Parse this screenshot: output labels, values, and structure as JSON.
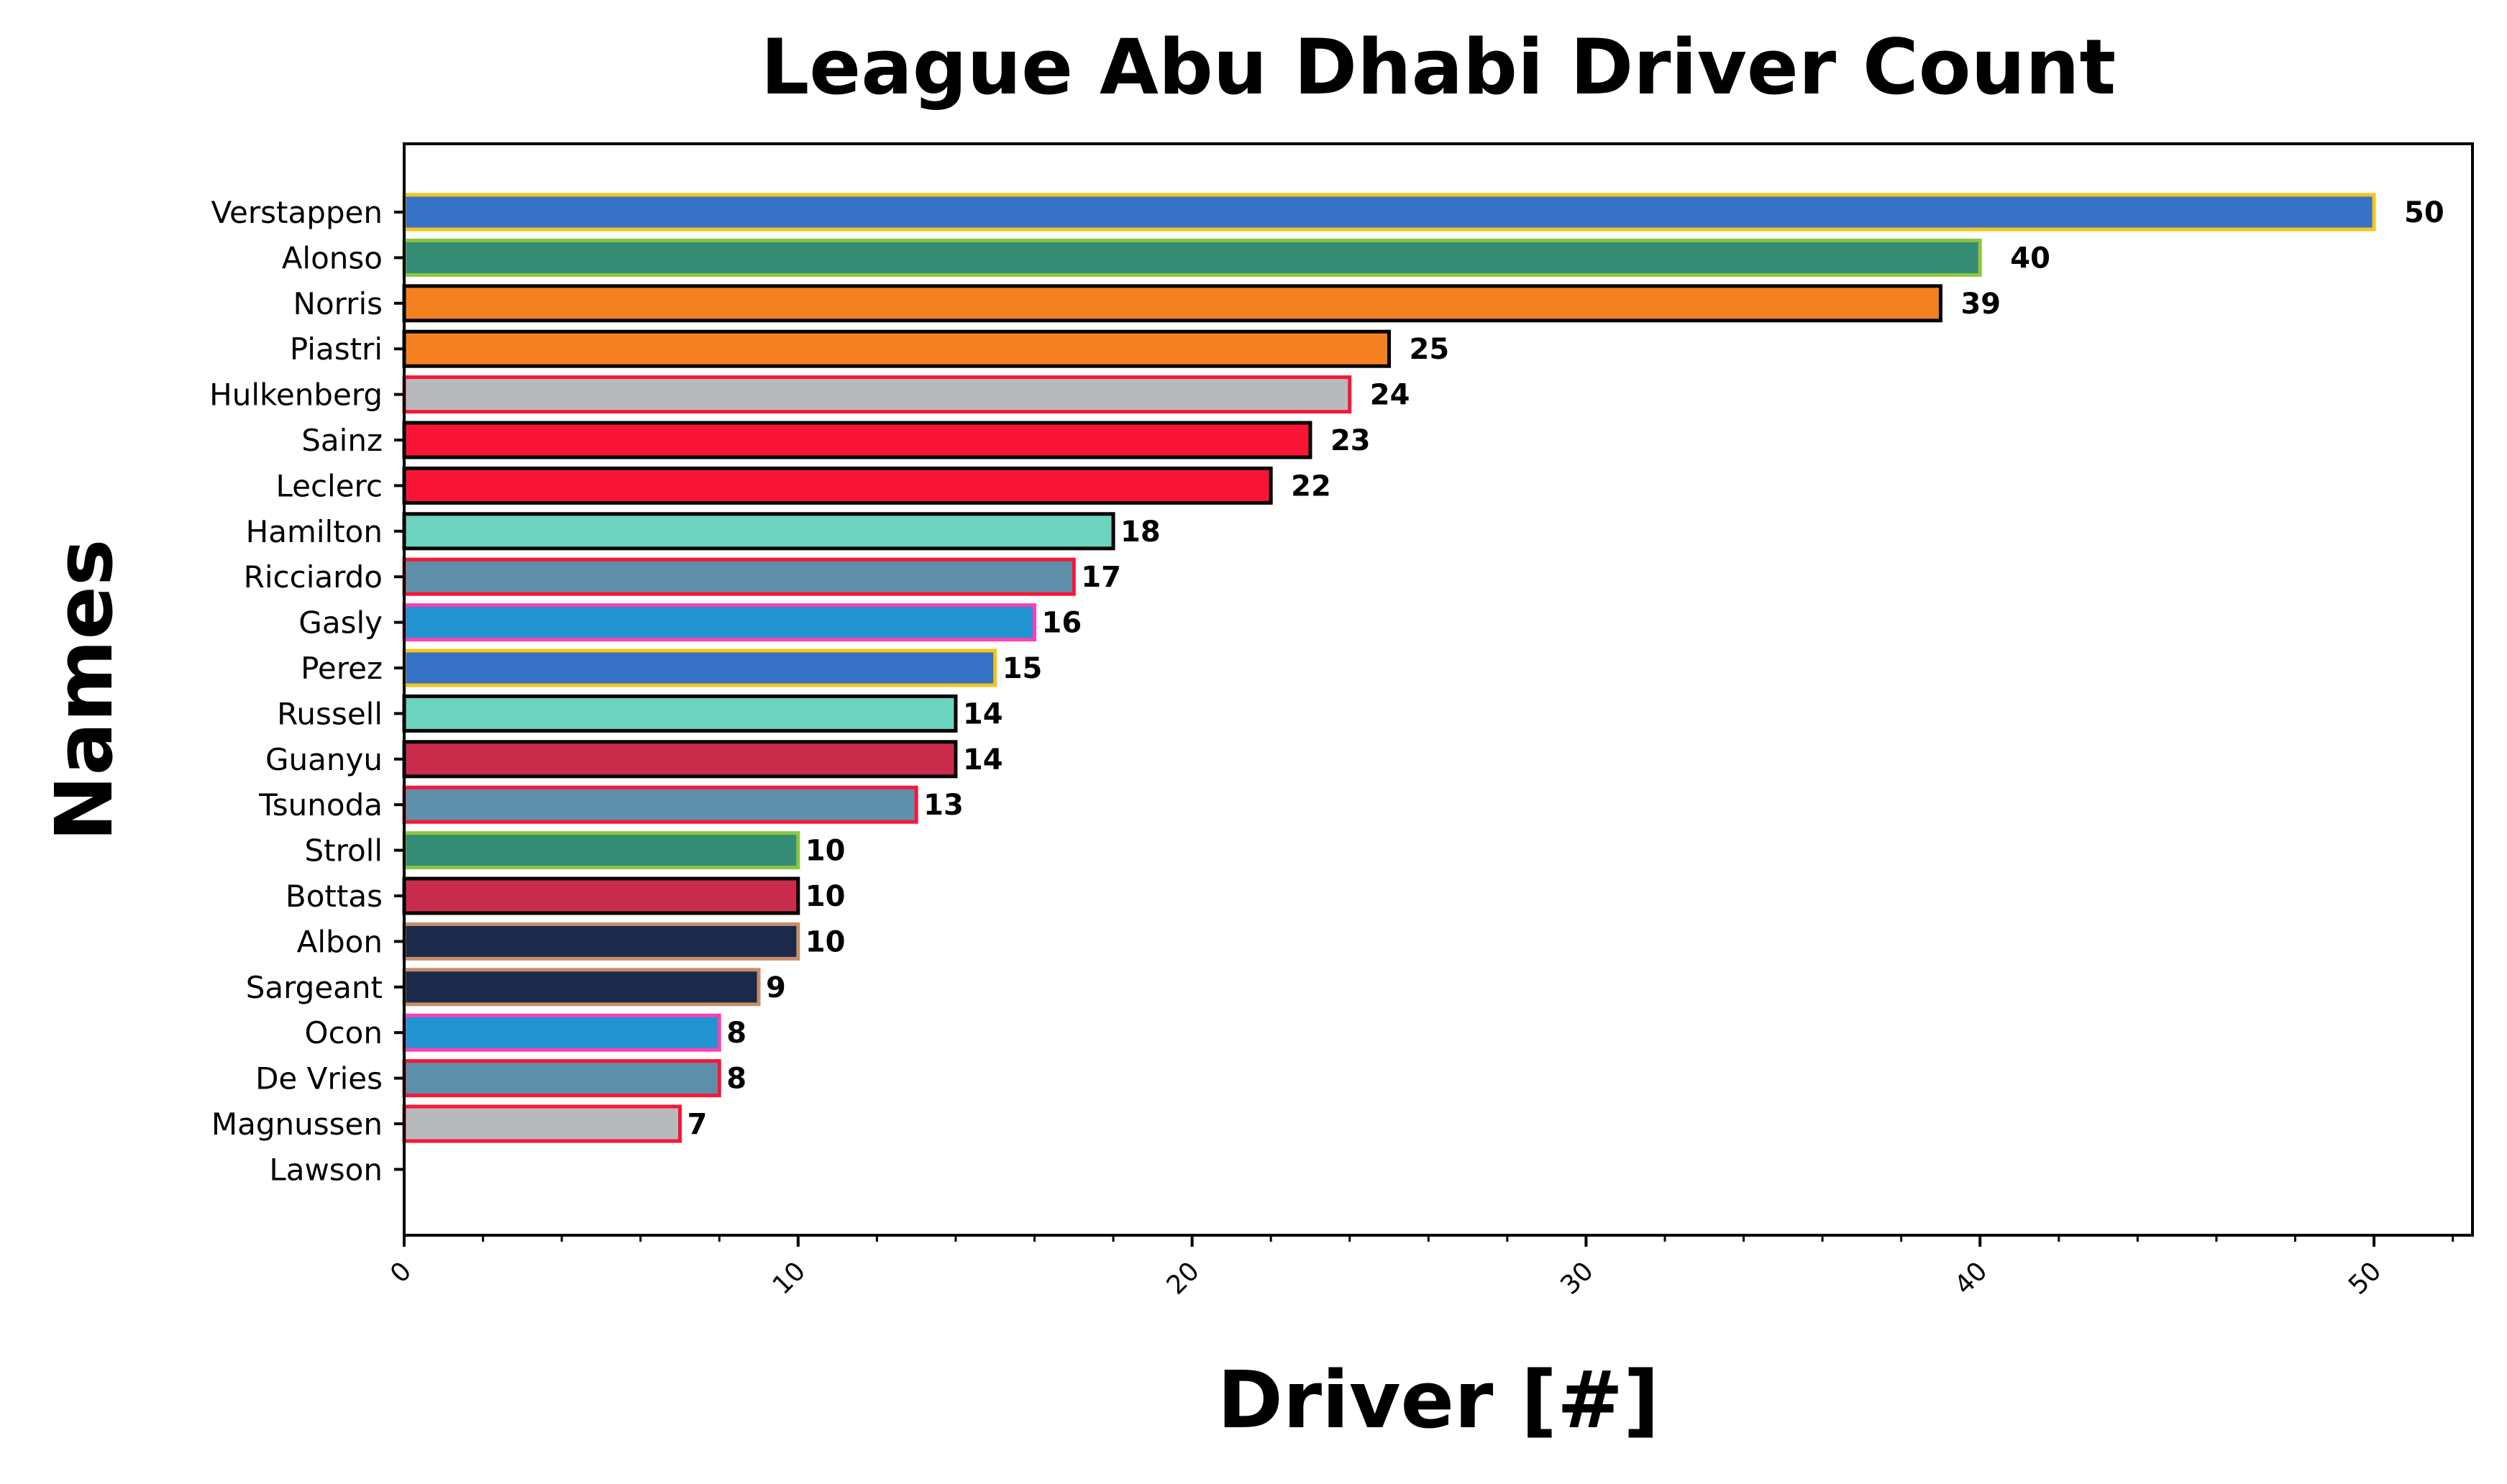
{
  "chart_data": {
    "type": "bar",
    "orientation": "horizontal",
    "title": "League Abu Dhabi Driver Count",
    "xlabel": "Driver [#]",
    "ylabel": "Names",
    "xlim": [
      0,
      52.5
    ],
    "xticks": [
      "0",
      "10",
      "20",
      "30",
      "40",
      "50"
    ],
    "grid": false,
    "categories": [
      "Verstappen",
      "Alonso",
      "Norris",
      "Piastri",
      "Hulkenberg",
      "Sainz",
      "Leclerc",
      "Hamilton",
      "Ricciardo",
      "Gasly",
      "Perez",
      "Russell",
      "Guanyu",
      "Tsunoda",
      "Stroll",
      "Bottas",
      "Albon",
      "Sargeant",
      "Ocon",
      "De Vries",
      "Magnussen",
      "Lawson"
    ],
    "values": [
      50,
      40,
      39,
      25,
      24,
      23,
      22,
      18,
      17,
      16,
      15,
      14,
      14,
      13,
      10,
      10,
      10,
      9,
      8,
      8,
      7,
      0
    ],
    "value_labels": [
      "50",
      "40",
      "39",
      "25",
      "24",
      "23",
      "22",
      "18",
      "17",
      "16",
      "15",
      "14",
      "14",
      "13",
      "10",
      "10",
      "10",
      "9",
      "8",
      "8",
      "7",
      ""
    ],
    "fill_colors": [
      "#3671C6",
      "#358C75",
      "#F58020",
      "#F58020",
      "#B6BABD",
      "#F91536",
      "#F91536",
      "#6CD3BF",
      "#5E8FAA",
      "#2293D1",
      "#3671C6",
      "#6CD3BF",
      "#C92D4B",
      "#5E8FAA",
      "#358C75",
      "#C92D4B",
      "#1B2A4A",
      "#1B2A4A",
      "#2293D1",
      "#5E8FAA",
      "#B6BABD",
      "#5E8FAA"
    ],
    "edge_colors": [
      "#F5C518",
      "#8CC63F",
      "#000000",
      "#000000",
      "#F91536",
      "#000000",
      "#000000",
      "#000000",
      "#F91536",
      "#FF3FB4",
      "#F5C518",
      "#000000",
      "#000000",
      "#F91536",
      "#8CC63F",
      "#000000",
      "#C58E6B",
      "#C58E6B",
      "#FF3FB4",
      "#F91536",
      "#F91536",
      "#000000"
    ]
  }
}
